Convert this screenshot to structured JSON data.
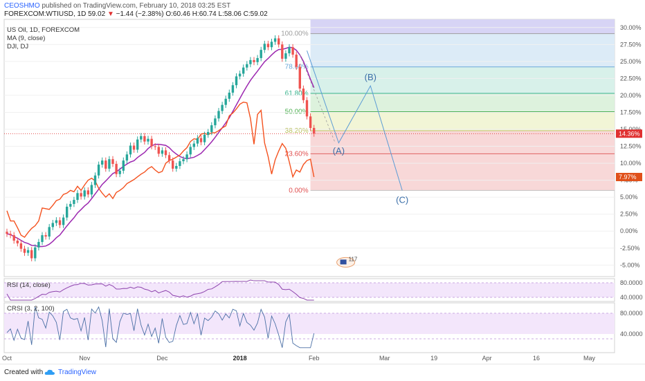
{
  "header": {
    "user": "CEOSHMO",
    "published": "published on TradingView.com, February 10, 2018 03:25 EST",
    "symbol_line_prefix": "FOREXCOM:WTIUSD, 1D",
    "last": "59.02",
    "change": "−1.44 (−2.38%)",
    "ohlc": "O:60.46 H:60.74 L:58.06 C:59.02",
    "down_color": "#e03030"
  },
  "legend": {
    "main": "US Oil, 1D, FOREXCOM",
    "ma": "MA (9, close)",
    "dji": "DJI, DJ"
  },
  "panes": {
    "rsi_label": "RSI (14, close)",
    "crsi_label": "CRSI (3, 2, 100)"
  },
  "footer": {
    "created_with": "Created with",
    "brand": "TradingView"
  },
  "badge": {
    "text": "117"
  },
  "chart_data": {
    "type": "candlestick",
    "price_axis": {
      "unit": "%",
      "ticks": [
        "30.00%",
        "27.50%",
        "25.00%",
        "22.50%",
        "20.00%",
        "17.50%",
        "15.00%",
        "12.50%",
        "10.00%",
        "7.50%",
        "5.00%",
        "2.50%",
        "0.00%",
        "-2.50%",
        "-5.00%"
      ],
      "tick_values": [
        30,
        27.5,
        25,
        22.5,
        20,
        17.5,
        15,
        12.5,
        10,
        7.5,
        5,
        2.5,
        0,
        -2.5,
        -5
      ],
      "ylim": [
        -6.7,
        31.2
      ]
    },
    "x_axis": {
      "ticks": [
        "Oct",
        "Nov",
        "Dec",
        "2018",
        "Feb",
        "Mar",
        "19",
        "Apr",
        "16",
        "May"
      ],
      "tick_index": [
        0,
        22,
        44,
        66,
        87,
        107,
        121,
        136,
        150,
        165
      ]
    },
    "last_value_labels": [
      {
        "text": "14.36%",
        "value": 14.36,
        "color": "#e03030"
      },
      {
        "text": "7.97%",
        "value": 7.97,
        "color": "#e0501a"
      }
    ],
    "fib": {
      "levels": [
        {
          "label": "100.00%",
          "value": 29.1,
          "fill": "#e6e6e6",
          "line": "#9e9e9e",
          "text": "#9e9e9e"
        },
        {
          "label": "78.60%",
          "value": 24.2,
          "fill": "#dcebf7",
          "line": "#6aa7d8",
          "text": "#6aa7d8"
        },
        {
          "label": "61.80%",
          "value": 20.3,
          "fill": "#d8f1ea",
          "line": "#37b38d",
          "text": "#37b38d"
        },
        {
          "label": "50.00%",
          "value": 17.6,
          "fill": "#ddf2dd",
          "line": "#4caf50",
          "text": "#4caf50"
        },
        {
          "label": "38.20%",
          "value": 14.8,
          "fill": "#f2f5d6",
          "line": "#c0c76a",
          "text": "#b9c05a"
        },
        {
          "label": "23.60%",
          "value": 11.4,
          "fill": "#f8d8d8",
          "line": "#e06060",
          "text": "#e05050"
        },
        {
          "label": "0.00%",
          "value": 6.0,
          "fill": "#f8d8d8",
          "line": "#c0c0c0",
          "text": "#e05050"
        }
      ],
      "top_band_value": 31.2,
      "top_band_fill": "#d7d4f5",
      "x_start": 86,
      "x_end": 188
    },
    "elliott_waves": {
      "points": [
        {
          "x": 94,
          "y": 13.0,
          "label": "(A)"
        },
        {
          "x": 103,
          "y": 21.4,
          "label": "(B)"
        },
        {
          "x": 112,
          "y": 6.0,
          "label": "(C)"
        }
      ],
      "color": "#5b9bd5"
    },
    "ma_color": "#9c27b0",
    "dji_color": "#f4511e",
    "up_color": "#26a69a",
    "down_color": "#ef5350",
    "candles_close": [
      -0.4,
      -0.6,
      -1.4,
      -1.8,
      -2.6,
      -3.2,
      -2.8,
      -4.0,
      -2.4,
      -1.6,
      -0.6,
      -0.8,
      0.6,
      1.2,
      1.6,
      0.9,
      2.0,
      3.6,
      4.0,
      4.6,
      5.6,
      5.1,
      6.0,
      5.4,
      6.8,
      8.2,
      9.8,
      10.4,
      9.2,
      10.6,
      9.9,
      8.4,
      8.9,
      10.4,
      11.3,
      12.6,
      12.0,
      13.5,
      14.0,
      13.2,
      13.6,
      12.5,
      12.4,
      11.4,
      11.9,
      11.2,
      10.4,
      9.2,
      9.6,
      10.3,
      10.6,
      11.3,
      12.4,
      12.9,
      13.7,
      13.1,
      14.2,
      14.6,
      15.6,
      16.6,
      17.7,
      18.6,
      19.5,
      20.4,
      21.5,
      22.8,
      23.2,
      24.1,
      24.6,
      25.2,
      24.9,
      25.5,
      26.7,
      27.6,
      27.1,
      27.9,
      28.4,
      27.5,
      25.4,
      26.2,
      27.1,
      26.0,
      24.2,
      21.0,
      19.3,
      16.9,
      15.2,
      14.36
    ],
    "dji_index": [
      3,
      1.5,
      1.5,
      0.5,
      -0.6,
      -0.9,
      -0.2,
      0.4,
      0.8,
      1.5,
      3.4,
      3.3,
      3.2,
      3.8,
      4.5,
      4.7,
      5.4,
      5.6,
      6.0,
      5.8,
      6.6,
      6.0,
      6.8,
      7.5,
      7.8,
      7.4,
      6.3,
      5.6,
      5.0,
      5.5,
      4.8,
      5.7,
      6.0,
      6.4,
      7.0,
      7.3,
      7.6,
      8.0,
      8.4,
      8.7,
      9.2,
      9.5,
      9.0,
      8.6,
      8.8,
      10.0,
      10.4,
      10.6,
      10.9,
      11.2,
      11.8,
      12.3,
      13.2,
      13.6,
      13.5,
      14.3,
      14.4,
      14.2,
      14.5,
      14.5,
      14.8,
      15.2,
      15.5,
      17.0,
      17.4,
      18.0,
      18.7,
      19.0,
      18.9,
      16.6,
      12.8,
      17.2,
      17.8,
      13.0,
      11.0,
      8.4,
      10.5,
      11.8,
      12.9,
      12.2,
      10.2,
      8.0,
      9.0,
      8.7,
      9.8,
      10.4,
      10.6,
      7.97
    ]
  }
}
